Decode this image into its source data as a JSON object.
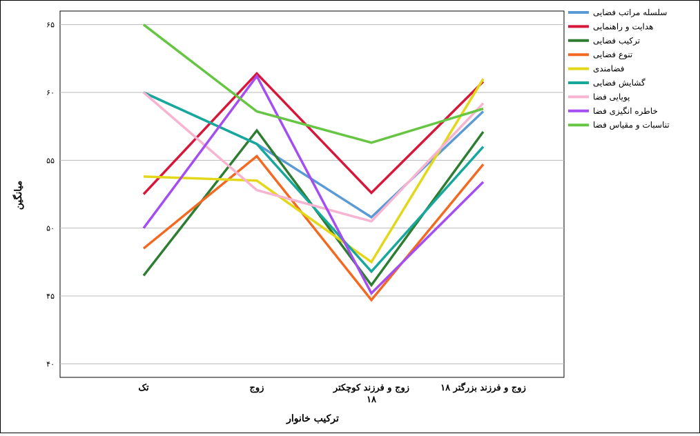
{
  "chart_data": {
    "type": "line",
    "title": "",
    "xlabel": "ترکیب خانوار",
    "ylabel": "میانگین",
    "categories": [
      "تک",
      "زوج",
      "زوج و فرزند کوچکتر ۱۸",
      "زوج و فرزند بزرگتر ۱۸"
    ],
    "ylim": [
      39,
      66
    ],
    "yticks": [
      40,
      45,
      50,
      55,
      60,
      65
    ],
    "ytick_labels": [
      "۴۰",
      "۴۵",
      "۵۰",
      "۵۵",
      "۶۰",
      "۶۵"
    ],
    "grid": "horizontal",
    "legend_position": "top-right",
    "series": [
      {
        "name": "سلسله مراتب فضایی",
        "color": "#5b9bd5",
        "values": [
          60.0,
          56.2,
          50.8,
          58.6
        ]
      },
      {
        "name": "هدایت و راهنمایی",
        "color": "#d6173a",
        "values": [
          52.5,
          61.4,
          52.6,
          60.8
        ]
      },
      {
        "name": "ترکیب فضایی",
        "color": "#2e7d32",
        "values": [
          46.5,
          57.2,
          45.8,
          57.1
        ]
      },
      {
        "name": "تنوع فضایی",
        "color": "#f26a22",
        "values": [
          48.5,
          55.3,
          44.7,
          54.7
        ]
      },
      {
        "name": "فضامندی",
        "color": "#e3d71a",
        "values": [
          53.8,
          53.5,
          47.5,
          61.0
        ]
      },
      {
        "name": "گشایش فضایی",
        "color": "#17a89b",
        "values": [
          60.0,
          56.2,
          46.8,
          56.0
        ]
      },
      {
        "name": "پویایی فضا",
        "color": "#f7b3d0",
        "values": [
          60.0,
          52.8,
          50.5,
          59.2
        ]
      },
      {
        "name": "خاطره انگیزی فضا",
        "color": "#a44df0",
        "values": [
          50.0,
          61.2,
          45.2,
          53.4
        ]
      },
      {
        "name": "تناسبات و مقیاس فضا",
        "color": "#66c542",
        "values": [
          65.0,
          58.6,
          56.3,
          58.8
        ]
      }
    ]
  }
}
